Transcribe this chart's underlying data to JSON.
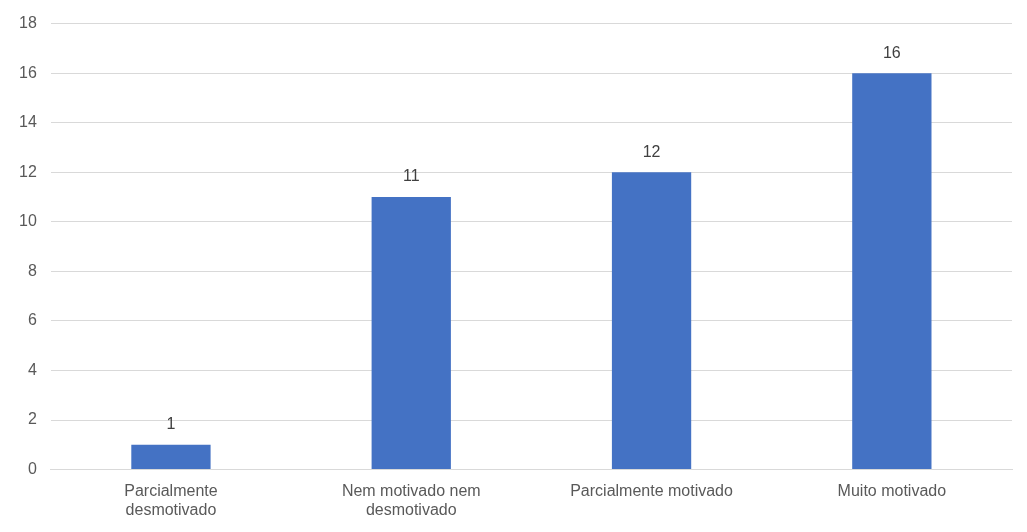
{
  "chart_data": {
    "type": "bar",
    "categories": [
      "Parcialmente desmotivado",
      "Nem motivado nem desmotivado",
      "Parcialmente motivado",
      "Muito motivado"
    ],
    "values": [
      1,
      11,
      12,
      16
    ],
    "color": "#4472c4",
    "ylim": [
      0,
      18
    ],
    "yticks": [
      0,
      2,
      4,
      6,
      8,
      10,
      12,
      14,
      16,
      18
    ],
    "grid": "y",
    "data_labels": true,
    "legend": false
  }
}
